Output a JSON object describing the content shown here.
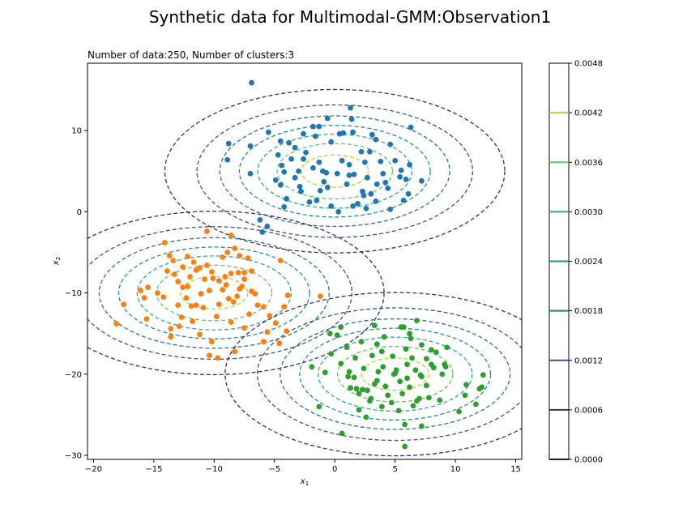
{
  "figure": {
    "suptitle": "Synthetic data for Multimodal-GMM:Observation1",
    "axes_title": "Number of data:250, Number of clusters:3"
  },
  "chart_data": {
    "type": "scatter",
    "title": "Number of data:250, Number of clusters:3",
    "xlabel_main": "x",
    "xlabel_sub": "1",
    "ylabel_main": "x",
    "ylabel_sub": "2",
    "xlim": [
      -20.5,
      15.5
    ],
    "ylim": [
      -30.5,
      18.3
    ],
    "xticks": [
      -20,
      -15,
      -10,
      -5,
      0,
      5,
      10,
      15
    ],
    "yticks": [
      -30,
      -20,
      -10,
      0,
      10
    ],
    "grid": false,
    "contours": {
      "style": "dashed",
      "levels": [
        0.0006,
        0.0012,
        0.0018,
        0.0024,
        0.003,
        0.0036,
        0.0042
      ],
      "colors": [
        "#3e2a6b",
        "#3b528b",
        "#2c728e",
        "#21908d",
        "#27ad81",
        "#5ec962",
        "#aadc32"
      ],
      "components": [
        {
          "mean": [
            0,
            5
          ],
          "sd": [
            7,
            5
          ]
        },
        {
          "mean": [
            -10,
            -10
          ],
          "sd": [
            7,
            5
          ]
        },
        {
          "mean": [
            5,
            -20
          ],
          "sd": [
            7,
            5
          ]
        }
      ]
    },
    "series": [
      {
        "color": "#1f77b4",
        "points": [
          [
            -6.9,
            15.9
          ],
          [
            1.3,
            12.8
          ],
          [
            -8.8,
            8.4
          ],
          [
            -8.9,
            6.4
          ],
          [
            -7.0,
            8.1
          ],
          [
            -7.0,
            4.7
          ],
          [
            -6.2,
            -1.0
          ],
          [
            -5.6,
            -1.8
          ],
          [
            -6.0,
            -2.5
          ],
          [
            -5.5,
            9.8
          ],
          [
            -4.5,
            8.7
          ],
          [
            -3.8,
            8.5
          ],
          [
            -3.3,
            7.9
          ],
          [
            -2.6,
            9.6
          ],
          [
            -1.8,
            10.5
          ],
          [
            -1.3,
            10.5
          ],
          [
            -0.6,
            11.5
          ],
          [
            0.4,
            9.6
          ],
          [
            1.4,
            11.4
          ],
          [
            1.5,
            9.8
          ],
          [
            3.1,
            9.5
          ],
          [
            3.4,
            8.9
          ],
          [
            4.6,
            8.3
          ],
          [
            6.3,
            10.4
          ],
          [
            -4.7,
            7.0
          ],
          [
            -4.4,
            5.7
          ],
          [
            -4.2,
            4.9
          ],
          [
            -4.9,
            3.9
          ],
          [
            -4.5,
            3.3
          ],
          [
            -4.2,
            0.6
          ],
          [
            -3.3,
            4.2
          ],
          [
            -3.0,
            5.0
          ],
          [
            -2.6,
            6.5
          ],
          [
            -2.4,
            7.3
          ],
          [
            -1.8,
            5.4
          ],
          [
            -1.3,
            6.1
          ],
          [
            -1.0,
            5.0
          ],
          [
            -0.7,
            4.8
          ],
          [
            -0.6,
            3.0
          ],
          [
            -1.2,
            2.6
          ],
          [
            -1.5,
            1.4
          ],
          [
            -0.3,
            0.7
          ],
          [
            0.3,
            0.0
          ],
          [
            0.2,
            4.7
          ],
          [
            0.6,
            6.3
          ],
          [
            1.2,
            5.8
          ],
          [
            1.6,
            4.6
          ],
          [
            2.2,
            7.4
          ],
          [
            2.5,
            6.1
          ],
          [
            2.7,
            4.2
          ],
          [
            2.4,
            2.0
          ],
          [
            1.9,
            1.0
          ],
          [
            1.5,
            0.7
          ],
          [
            2.6,
            0.4
          ],
          [
            3.0,
            2.2
          ],
          [
            3.5,
            3.4
          ],
          [
            4.0,
            4.7
          ],
          [
            4.2,
            3.6
          ],
          [
            5.0,
            6.3
          ],
          [
            5.4,
            4.3
          ],
          [
            5.5,
            5.1
          ],
          [
            5.9,
            4.0
          ],
          [
            6.1,
            2.2
          ],
          [
            6.2,
            5.8
          ],
          [
            7.2,
            3.8
          ],
          [
            4.6,
            0.3
          ],
          [
            3.4,
            1.3
          ],
          [
            -2.1,
            1.2
          ],
          [
            -2.8,
            2.5
          ],
          [
            -0.3,
            8.6
          ],
          [
            1.2,
            4.5
          ],
          [
            2.9,
            7.4
          ],
          [
            -3.6,
            6.5
          ],
          [
            -1.6,
            9.3
          ],
          [
            0.7,
            9.7
          ],
          [
            3.8,
            6.2
          ],
          [
            -0.9,
            3.7
          ],
          [
            2.3,
            2.5
          ],
          [
            4.4,
            2.9
          ],
          [
            5.7,
            1.4
          ],
          [
            -4.0,
            1.6
          ],
          [
            -2.9,
            3.1
          ],
          [
            1.0,
            3.4
          ]
        ]
      },
      {
        "color": "#ff7f0e",
        "points": [
          [
            -10.6,
            -2.4
          ],
          [
            -14.1,
            -3.8
          ],
          [
            -13.7,
            -5.4
          ],
          [
            -13.4,
            -6.0
          ],
          [
            -12.6,
            -6.8
          ],
          [
            -12.2,
            -5.5
          ],
          [
            -11.7,
            -6.2
          ],
          [
            -11.2,
            -6.9
          ],
          [
            -10.6,
            -6.6
          ],
          [
            -10.2,
            -7.4
          ],
          [
            -9.3,
            -5.6
          ],
          [
            -8.9,
            -5.0
          ],
          [
            -8.6,
            -2.9
          ],
          [
            -8.3,
            -4.5
          ],
          [
            -7.9,
            -5.4
          ],
          [
            -8.0,
            -7.5
          ],
          [
            -7.5,
            -8.3
          ],
          [
            -7.9,
            -9.5
          ],
          [
            -8.1,
            -10.4
          ],
          [
            -8.8,
            -10.7
          ],
          [
            -9.3,
            -9.6
          ],
          [
            -9.6,
            -8.5
          ],
          [
            -10.1,
            -8.2
          ],
          [
            -10.4,
            -9.7
          ],
          [
            -11.1,
            -10.1
          ],
          [
            -11.5,
            -11.5
          ],
          [
            -11.9,
            -11.6
          ],
          [
            -12.3,
            -10.6
          ],
          [
            -12.6,
            -9.3
          ],
          [
            -13.0,
            -8.6
          ],
          [
            -13.3,
            -7.7
          ],
          [
            -13.9,
            -7.3
          ],
          [
            -14.2,
            -10.5
          ],
          [
            -14.7,
            -10.0
          ],
          [
            -15.5,
            -9.3
          ],
          [
            -16.1,
            -9.7
          ],
          [
            -15.8,
            -10.6
          ],
          [
            -17.5,
            -11.4
          ],
          [
            -18.1,
            -13.8
          ],
          [
            -15.6,
            -13.2
          ],
          [
            -13.6,
            -14.4
          ],
          [
            -12.9,
            -14.1
          ],
          [
            -12.7,
            -13.0
          ],
          [
            -13.6,
            -15.4
          ],
          [
            -11.2,
            -15.1
          ],
          [
            -10.2,
            -16.0
          ],
          [
            -9.8,
            -12.9
          ],
          [
            -8.6,
            -13.6
          ],
          [
            -8.3,
            -17.2
          ],
          [
            -9.7,
            -18.0
          ],
          [
            -10.4,
            -17.7
          ],
          [
            -7.5,
            -14.3
          ],
          [
            -7.1,
            -12.6
          ],
          [
            -6.4,
            -11.5
          ],
          [
            -5.9,
            -11.7
          ],
          [
            -5.4,
            -12.8
          ],
          [
            -5.6,
            -14.8
          ],
          [
            -4.9,
            -13.7
          ],
          [
            -4.6,
            -16.2
          ],
          [
            -4.0,
            -14.7
          ],
          [
            -4.2,
            -11.7
          ],
          [
            -4.5,
            -6.0
          ],
          [
            -3.9,
            -10.3
          ],
          [
            -1.2,
            -10.4
          ],
          [
            -6.9,
            -9.8
          ],
          [
            -6.9,
            -7.3
          ],
          [
            -7.5,
            -7.5
          ],
          [
            -8.6,
            -7.6
          ],
          [
            -9.1,
            -8.0
          ],
          [
            -10.8,
            -8.3
          ],
          [
            -11.5,
            -7.2
          ],
          [
            -12.2,
            -9.2
          ],
          [
            -10.9,
            -11.8
          ],
          [
            -9.6,
            -11.4
          ],
          [
            -8.4,
            -11.1
          ],
          [
            -7.7,
            -9.2
          ],
          [
            -9.0,
            -9.0
          ],
          [
            -12.0,
            -8.0
          ],
          [
            -13.0,
            -11.5
          ],
          [
            -7.2,
            -5.7
          ],
          [
            -11.8,
            -13.5
          ],
          [
            -6.6,
            -10.1
          ],
          [
            -5.9,
            -16.0
          ]
        ]
      },
      {
        "color": "#2ca02c",
        "points": [
          [
            -1.9,
            -19.1
          ],
          [
            0.5,
            -14.2
          ],
          [
            0.2,
            -15.2
          ],
          [
            -0.4,
            -15.0
          ],
          [
            -0.3,
            -17.5
          ],
          [
            0.5,
            -18.7
          ],
          [
            1.0,
            -16.7
          ],
          [
            1.2,
            -19.7
          ],
          [
            1.6,
            -20.4
          ],
          [
            1.7,
            -18.0
          ],
          [
            1.3,
            -21.7
          ],
          [
            1.8,
            -21.8
          ],
          [
            2.0,
            -22.4
          ],
          [
            2.3,
            -21.9
          ],
          [
            2.7,
            -22.0
          ],
          [
            3.0,
            -23.0
          ],
          [
            2.9,
            -23.3
          ],
          [
            2.6,
            -25.3
          ],
          [
            2.0,
            -24.4
          ],
          [
            0.6,
            -27.3
          ],
          [
            -1.3,
            -24.0
          ],
          [
            -0.8,
            -19.8
          ],
          [
            3.3,
            -14.0
          ],
          [
            3.5,
            -16.3
          ],
          [
            3.9,
            -17.2
          ],
          [
            3.1,
            -17.7
          ],
          [
            3.6,
            -19.7
          ],
          [
            4.0,
            -19.1
          ],
          [
            3.5,
            -20.8
          ],
          [
            4.2,
            -21.5
          ],
          [
            4.9,
            -20.0
          ],
          [
            5.1,
            -19.5
          ],
          [
            5.4,
            -20.9
          ],
          [
            4.7,
            -23.5
          ],
          [
            5.3,
            -24.5
          ],
          [
            5.8,
            -26.2
          ],
          [
            5.8,
            -28.9
          ],
          [
            7.2,
            -26.4
          ],
          [
            5.5,
            -14.2
          ],
          [
            5.7,
            -14.2
          ],
          [
            6.2,
            -15.0
          ],
          [
            6.3,
            -15.6
          ],
          [
            5.9,
            -16.9
          ],
          [
            6.4,
            -18.0
          ],
          [
            6.0,
            -18.8
          ],
          [
            6.7,
            -19.5
          ],
          [
            7.2,
            -20.3
          ],
          [
            7.1,
            -20.1
          ],
          [
            7.6,
            -21.4
          ],
          [
            6.2,
            -21.6
          ],
          [
            6.8,
            -23.3
          ],
          [
            6.5,
            -23.9
          ],
          [
            7.0,
            -23.0
          ],
          [
            6.8,
            -13.4
          ],
          [
            7.2,
            -16.4
          ],
          [
            8.0,
            -17.0
          ],
          [
            8.4,
            -17.3
          ],
          [
            8.0,
            -18.8
          ],
          [
            8.2,
            -19.2
          ],
          [
            9.1,
            -18.8
          ],
          [
            9.2,
            -19.1
          ],
          [
            8.9,
            -20.0
          ],
          [
            7.8,
            -22.9
          ],
          [
            8.7,
            -23.2
          ],
          [
            9.3,
            -16.7
          ],
          [
            10.3,
            -24.6
          ],
          [
            10.8,
            -22.6
          ],
          [
            10.9,
            -21.3
          ],
          [
            11.7,
            -23.7
          ],
          [
            12.0,
            -21.8
          ],
          [
            12.2,
            -21.6
          ],
          [
            12.3,
            -20.1
          ],
          [
            4.1,
            -15.4
          ],
          [
            2.2,
            -16.0
          ],
          [
            4.8,
            -17.8
          ],
          [
            5.6,
            -22.4
          ],
          [
            3.3,
            -21.2
          ],
          [
            6.0,
            -20.5
          ],
          [
            4.4,
            -22.6
          ],
          [
            5.0,
            -19.9
          ],
          [
            7.6,
            -18.1
          ],
          [
            2.4,
            -19.3
          ],
          [
            3.9,
            -24.0
          ],
          [
            1.1,
            -20.3
          ]
        ]
      }
    ]
  },
  "colorbar": {
    "ticks": [
      "0.0000",
      "0.0006",
      "0.0012",
      "0.0018",
      "0.0024",
      "0.0030",
      "0.0036",
      "0.0042",
      "0.0048"
    ],
    "line_colors": [
      "#3e2a6b",
      "#3b528b",
      "#2c728e",
      "#21908d",
      "#27ad81",
      "#5ec962",
      "#aadc32"
    ]
  }
}
